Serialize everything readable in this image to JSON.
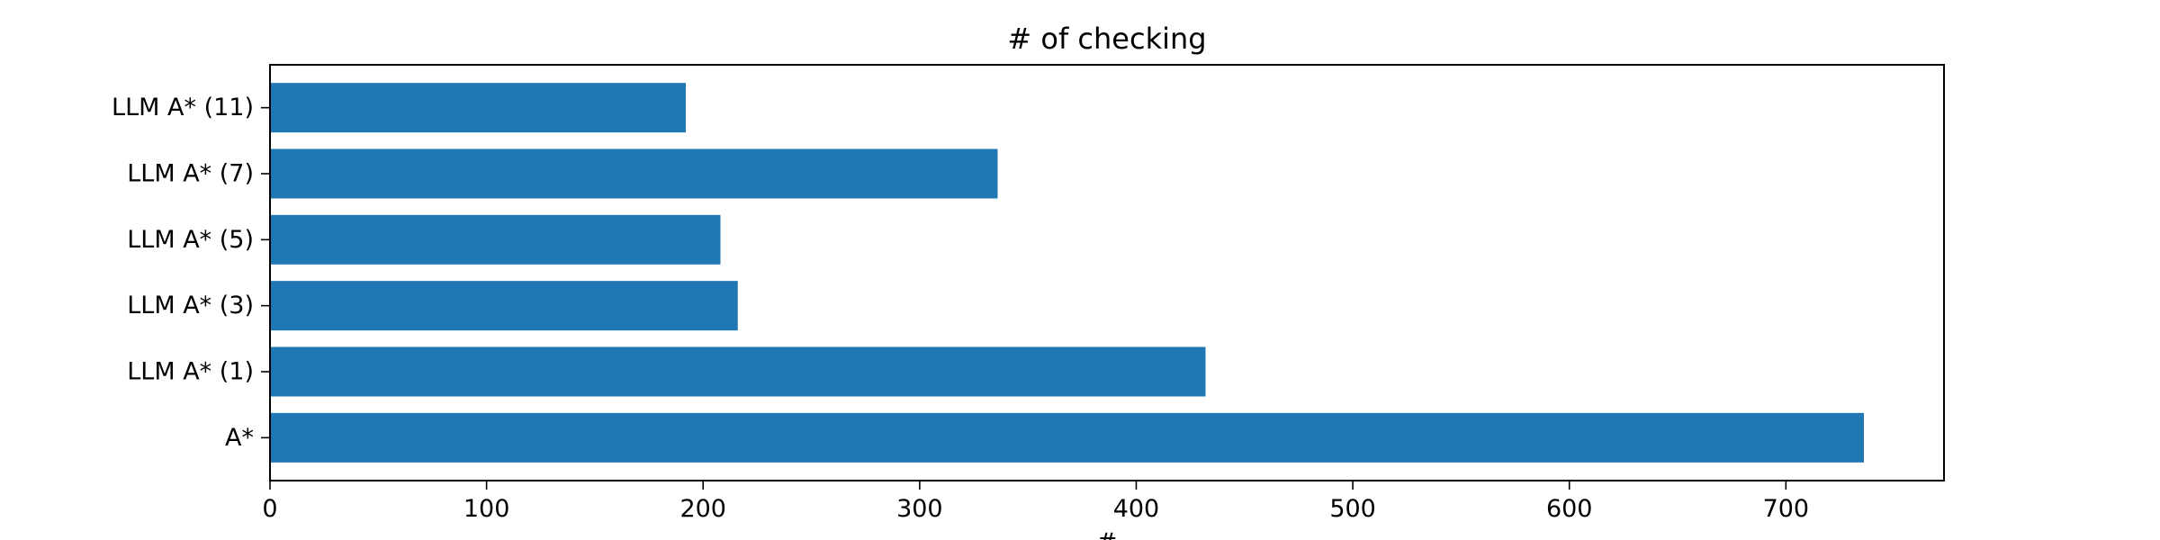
{
  "chart_data": {
    "type": "bar",
    "orientation": "horizontal",
    "title": "# of checking",
    "xlabel": "#",
    "ylabel": "",
    "categories": [
      "A*",
      "LLM A* (1)",
      "LLM A* (3)",
      "LLM A* (5)",
      "LLM A* (7)",
      "LLM A* (11)"
    ],
    "values": [
      736,
      432,
      216,
      208,
      336,
      192
    ],
    "xlim": [
      0,
      773
    ],
    "xticks": [
      0,
      100,
      200,
      300,
      400,
      500,
      600,
      700
    ],
    "bar_color": "#1f77b4",
    "grid": false,
    "legend": "none"
  }
}
